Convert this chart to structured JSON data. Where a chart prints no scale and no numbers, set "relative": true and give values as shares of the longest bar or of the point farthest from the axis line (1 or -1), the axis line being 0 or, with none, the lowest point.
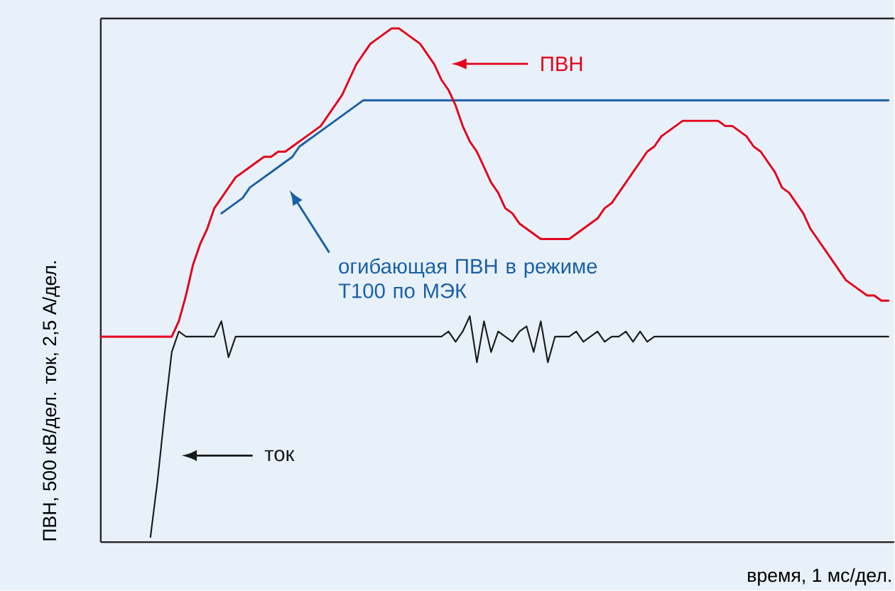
{
  "chart_data": {
    "type": "line",
    "relative": true,
    "legend": "top",
    "xlabel": "время, 1 мс/дел.",
    "ylabel": "ПВН, 500 кВ/дел. ток, 2,5 А/дел.",
    "categories": [
      null,
      null,
      null,
      null,
      null,
      null,
      null,
      null,
      null,
      null,
      null,
      null,
      null,
      null,
      null,
      null,
      null,
      null,
      null,
      null,
      null,
      null,
      null,
      null,
      null,
      null,
      null,
      null,
      null,
      null,
      null,
      null,
      null,
      null,
      null,
      null,
      null,
      null,
      null,
      null,
      null,
      null,
      null,
      null,
      null,
      null,
      null,
      null,
      null,
      null,
      null,
      null,
      null,
      null,
      null,
      null,
      null,
      null,
      null,
      null,
      null,
      null,
      null,
      null,
      null,
      null,
      null,
      null,
      null,
      null,
      null,
      null,
      null,
      null,
      null,
      null,
      null,
      null,
      null,
      null,
      null,
      null,
      null,
      null,
      null,
      null,
      null,
      null,
      null,
      null,
      null,
      null,
      null,
      null,
      null,
      null,
      null,
      null,
      null,
      null,
      null,
      null,
      null,
      null,
      null,
      null,
      null,
      null,
      null,
      null,
      null,
      null
    ],
    "series": [
      {
        "name": "огибающая ПВН в режиме Т100 по МЭК",
        "color": "#1a5fa8",
        "values": [
          null,
          null,
          null,
          null,
          null,
          null,
          null,
          null,
          null,
          null,
          null,
          null,
          null,
          null,
          null,
          null,
          null,
          0.64,
          0.65,
          0.66,
          0.67,
          0.69,
          0.7,
          0.71,
          0.72,
          0.73,
          0.74,
          0.75,
          0.77,
          0.78,
          0.79,
          0.8,
          0.81,
          0.82,
          0.83,
          0.84,
          0.85,
          0.86,
          0.86,
          0.86,
          0.86,
          0.86,
          0.86,
          0.86,
          0.86,
          0.86,
          0.86,
          0.86,
          0.86,
          0.86,
          0.86,
          0.86,
          0.86,
          0.86,
          0.86,
          0.86,
          0.86,
          0.86,
          0.86,
          0.86,
          0.86,
          0.86,
          0.86,
          0.86,
          0.86,
          0.86,
          0.86,
          0.86,
          0.86,
          0.86,
          0.86,
          0.86,
          0.86,
          0.86,
          0.86,
          0.86,
          0.86,
          0.86,
          0.86,
          0.86,
          0.86,
          0.86,
          0.86,
          0.86,
          0.86,
          0.86,
          0.86,
          0.86,
          0.86,
          0.86,
          0.86,
          0.86,
          0.86,
          0.86,
          0.86,
          0.86,
          0.86,
          0.86,
          0.86,
          0.86,
          0.86,
          0.86,
          0.86,
          0.86,
          0.86,
          0.86,
          0.86,
          0.86,
          0.86,
          0.86,
          0.86,
          0.86
        ]
      },
      {
        "name": "ПВН",
        "color": "#e3001b",
        "values": [
          0.4,
          0.4,
          0.4,
          0.4,
          0.4,
          0.4,
          0.4,
          0.4,
          0.4,
          0.4,
          0.4,
          0.43,
          0.48,
          0.54,
          0.58,
          0.61,
          0.65,
          0.67,
          0.69,
          0.71,
          0.72,
          0.73,
          0.74,
          0.75,
          0.75,
          0.76,
          0.76,
          0.77,
          0.78,
          0.79,
          0.8,
          0.81,
          0.83,
          0.85,
          0.87,
          0.9,
          0.93,
          0.95,
          0.97,
          0.98,
          0.99,
          1.0,
          1.0,
          0.99,
          0.98,
          0.97,
          0.95,
          0.93,
          0.9,
          0.88,
          0.85,
          0.81,
          0.78,
          0.76,
          0.73,
          0.7,
          0.68,
          0.65,
          0.64,
          0.62,
          0.61,
          0.6,
          0.59,
          0.59,
          0.59,
          0.59,
          0.59,
          0.6,
          0.61,
          0.62,
          0.63,
          0.65,
          0.66,
          0.68,
          0.7,
          0.72,
          0.74,
          0.76,
          0.77,
          0.79,
          0.8,
          0.81,
          0.82,
          0.82,
          0.82,
          0.82,
          0.82,
          0.82,
          0.81,
          0.81,
          0.8,
          0.79,
          0.77,
          0.76,
          0.74,
          0.72,
          0.69,
          0.68,
          0.66,
          0.64,
          0.61,
          0.59,
          0.57,
          0.55,
          0.53,
          0.51,
          0.5,
          0.49,
          0.48,
          0.48,
          0.47,
          0.47
        ]
      },
      {
        "name": "ток",
        "color": "#1a1a1a",
        "values": [
          null,
          null,
          null,
          null,
          null,
          null,
          null,
          0.01,
          0.12,
          0.25,
          0.37,
          0.41,
          0.4,
          0.4,
          0.4,
          0.4,
          0.4,
          0.43,
          0.36,
          0.4,
          0.4,
          0.4,
          0.4,
          0.4,
          0.4,
          0.4,
          0.4,
          0.4,
          0.4,
          0.4,
          0.4,
          0.4,
          0.4,
          0.4,
          0.4,
          0.4,
          0.4,
          0.4,
          0.4,
          0.4,
          0.4,
          0.4,
          0.4,
          0.4,
          0.4,
          0.4,
          0.4,
          0.4,
          0.4,
          0.41,
          0.39,
          0.41,
          0.44,
          0.35,
          0.43,
          0.37,
          0.41,
          0.4,
          0.39,
          0.41,
          0.42,
          0.37,
          0.43,
          0.35,
          0.4,
          0.4,
          0.4,
          0.41,
          0.39,
          0.4,
          0.41,
          0.39,
          0.4,
          0.4,
          0.41,
          0.39,
          0.41,
          0.39,
          0.4,
          0.4,
          0.4,
          0.4,
          0.4,
          0.4,
          0.4,
          0.4,
          0.4,
          0.4,
          0.4,
          0.4,
          0.4,
          0.4,
          0.4,
          0.4,
          0.4,
          0.4,
          0.4,
          0.4,
          0.4,
          0.4,
          0.4,
          0.4,
          0.4,
          0.4,
          0.4,
          0.4,
          0.4,
          0.4,
          0.4,
          0.4,
          0.4,
          0.4
        ]
      }
    ]
  }
}
